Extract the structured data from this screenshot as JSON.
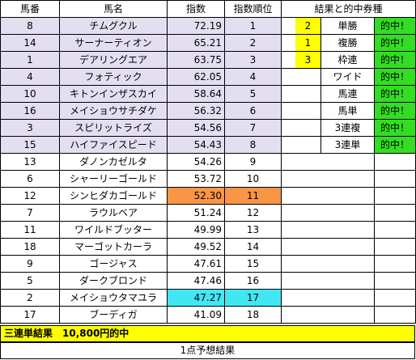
{
  "headers": {
    "no": "馬番",
    "name": "馬名",
    "index": "指数",
    "rank": "指数順位",
    "result": "結果と的中券種"
  },
  "horses": [
    {
      "no": "8",
      "name": "チムグクル",
      "index": "72.19",
      "rank": "1",
      "hl": true
    },
    {
      "no": "14",
      "name": "サーナーティオン",
      "index": "65.21",
      "rank": "2",
      "hl": true
    },
    {
      "no": "1",
      "name": "デアリングエア",
      "index": "63.75",
      "rank": "3",
      "hl": true
    },
    {
      "no": "4",
      "name": "フォティック",
      "index": "62.05",
      "rank": "4",
      "hl": true
    },
    {
      "no": "10",
      "name": "キトンインザスカイ",
      "index": "58.64",
      "rank": "5",
      "hl": true
    },
    {
      "no": "16",
      "name": "メイショウサチダケ",
      "index": "56.32",
      "rank": "6",
      "hl": true
    },
    {
      "no": "3",
      "name": "スピリットライズ",
      "index": "54.56",
      "rank": "7",
      "hl": true
    },
    {
      "no": "15",
      "name": "ハイファイスピード",
      "index": "54.43",
      "rank": "8",
      "hl": true
    },
    {
      "no": "13",
      "name": "ダノンカゼルタ",
      "index": "54.26",
      "rank": "9"
    },
    {
      "no": "6",
      "name": "シャーリーゴールド",
      "index": "53.72",
      "rank": "10"
    },
    {
      "no": "12",
      "name": "シンヒダカゴールド",
      "index": "52.30",
      "rank": "11",
      "mark": "orange"
    },
    {
      "no": "7",
      "name": "ラウルベア",
      "index": "51.24",
      "rank": "12"
    },
    {
      "no": "11",
      "name": "ワイルドブッター",
      "index": "49.99",
      "rank": "13"
    },
    {
      "no": "18",
      "name": "マーゴットカーラ",
      "index": "49.52",
      "rank": "14"
    },
    {
      "no": "9",
      "name": "ゴージャス",
      "index": "47.61",
      "rank": "15"
    },
    {
      "no": "5",
      "name": "ダークブロンド",
      "index": "47.46",
      "rank": "16"
    },
    {
      "no": "2",
      "name": "メイショウタマユラ",
      "index": "47.27",
      "rank": "17",
      "mark": "cyan"
    },
    {
      "no": "17",
      "name": "ブーディガ",
      "index": "41.09",
      "rank": "18"
    }
  ],
  "results": [
    {
      "place": "2",
      "type": "単勝",
      "hit": "的中！"
    },
    {
      "place": "1",
      "type": "複勝",
      "hit": "的中！"
    },
    {
      "place": "3",
      "type": "枠連",
      "hit": "的中！"
    },
    {
      "place": "",
      "type": "ワイド",
      "hit": "的中！"
    },
    {
      "place": "",
      "type": "馬連",
      "hit": "的中！"
    },
    {
      "place": "",
      "type": "馬単",
      "hit": "的中！"
    },
    {
      "place": "",
      "type": "3連複",
      "hit": "的中！"
    },
    {
      "place": "",
      "type": "3連単",
      "hit": "的中！"
    }
  ],
  "summary": {
    "trifecta": "三連単結果　10,800円的中",
    "footer": "1点予想結果"
  },
  "colors": {
    "highlight": "#e4dff0",
    "orange": "#f79646",
    "cyan": "#41e8f4",
    "yellow": "#ffff00",
    "green": "#33dd22"
  }
}
